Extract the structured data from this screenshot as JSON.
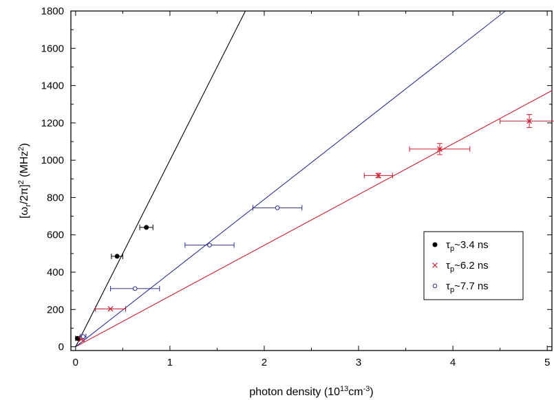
{
  "chart_data": {
    "type": "scatter",
    "xlabel": "photon density (10",
    "xlabel_sup": "13",
    "xlabel_mid": "cm",
    "xlabel_sup2": "-3",
    "xlabel_end": ")",
    "ylabel": "[ω",
    "ylabel_sub": "r",
    "ylabel_mid": "/2π]",
    "ylabel_sup": "2",
    "ylabel_end": " (MHz",
    "ylabel_sup2": "2",
    "ylabel_close": ")",
    "xlim": [
      -0.05,
      5.05
    ],
    "ylim": [
      -20,
      1800
    ],
    "x_ticks": [
      0,
      1,
      2,
      3,
      4,
      5
    ],
    "y_ticks": [
      0,
      200,
      400,
      600,
      800,
      1000,
      1200,
      1400,
      1600,
      1800
    ],
    "x_tick_labels": [
      "0",
      "1",
      "2",
      "3",
      "4",
      "5"
    ],
    "y_tick_labels": [
      "0",
      "200",
      "400",
      "600",
      "800",
      "1000",
      "1200",
      "1400",
      "1600",
      "1800"
    ],
    "legend_position": "lower-right",
    "series": [
      {
        "name": "τp~3.4 ns",
        "name_prefix": "τ",
        "name_sub": "p",
        "name_suffix": "~3.4 ns",
        "color": "#000000",
        "marker": "filled-circle",
        "points": [
          {
            "x": 0.02,
            "y": 45,
            "xerr": 0.02,
            "yerr": 0
          },
          {
            "x": 0.44,
            "y": 485,
            "xerr": 0.06,
            "yerr": 0
          },
          {
            "x": 0.75,
            "y": 640,
            "xerr": 0.07,
            "yerr": 0
          }
        ],
        "fit_slope": 1000
      },
      {
        "name": "τp~6.2 ns",
        "name_prefix": "τ",
        "name_sub": "p",
        "name_suffix": "~6.2 ns",
        "color": "#cc1a2e",
        "marker": "x",
        "points": [
          {
            "x": 0.06,
            "y": 40,
            "xerr": 0.03,
            "yerr": 0
          },
          {
            "x": 0.37,
            "y": 203,
            "xerr": 0.16,
            "yerr": 0
          },
          {
            "x": 3.21,
            "y": 918,
            "xerr": 0.15,
            "yerr": 12
          },
          {
            "x": 3.86,
            "y": 1060,
            "xerr": 0.32,
            "yerr": 30
          },
          {
            "x": 4.81,
            "y": 1210,
            "xerr": 0.31,
            "yerr": 35
          }
        ],
        "fit_slope": 272
      },
      {
        "name": "τp~7.7 ns",
        "name_prefix": "τ",
        "name_sub": "p",
        "name_suffix": "~7.7 ns",
        "color": "#2a2f8f",
        "marker": "open-circle",
        "points": [
          {
            "x": 0.08,
            "y": 55,
            "xerr": 0.03,
            "yerr": 0
          },
          {
            "x": 0.63,
            "y": 312,
            "xerr": 0.26,
            "yerr": 0
          },
          {
            "x": 1.42,
            "y": 545,
            "xerr": 0.26,
            "yerr": 0
          },
          {
            "x": 2.14,
            "y": 745,
            "xerr": 0.26,
            "yerr": 0
          }
        ],
        "fit_slope": 395
      }
    ]
  }
}
